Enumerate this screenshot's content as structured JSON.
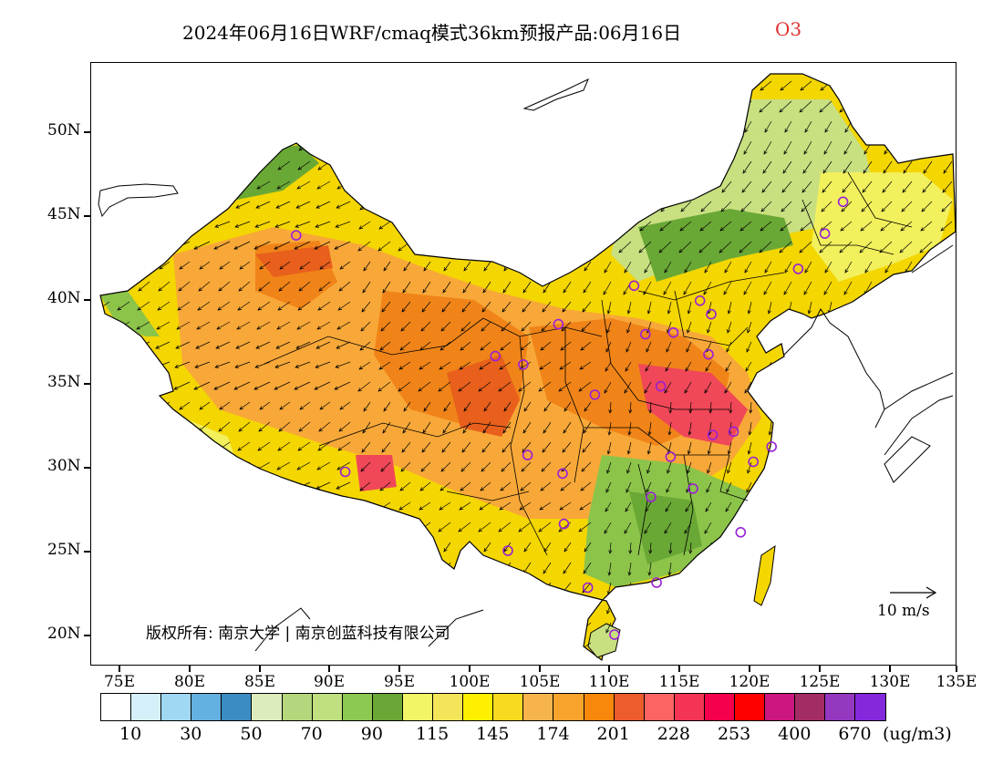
{
  "title": {
    "main": "2024年06月16日WRF/cmaq模式36km预报产品:06月16日",
    "species": "O3",
    "species_color": "#e03030"
  },
  "map": {
    "lon_ticks": [
      "75E",
      "80E",
      "85E",
      "90E",
      "95E",
      "100E",
      "105E",
      "110E",
      "115E",
      "120E",
      "125E",
      "130E",
      "135E"
    ],
    "lat_ticks": [
      "50N",
      "45N",
      "40N",
      "35N",
      "30N",
      "25N",
      "20N"
    ],
    "copyright": "版权所有: 南京大学 | 南京创蓝科技有限公司",
    "vector_key_label": "10 m/s",
    "concentration_colors": [
      "#f4d600",
      "#f8a838",
      "#f08418",
      "#e8601c",
      "#f04858",
      "#c8e080",
      "#8cc44a",
      "#6aa836",
      "#f2f05c"
    ]
  },
  "colorbar": {
    "colors": [
      "#ffffff",
      "#d6f0fa",
      "#a0d8f4",
      "#64b0e0",
      "#3c8cc4",
      "#dcecbc",
      "#b4d67c",
      "#c0e080",
      "#8cc852",
      "#6aa636",
      "#f2f566",
      "#f4e45a",
      "#fff000",
      "#f8da20",
      "#f8b44c",
      "#f8a42c",
      "#f8880c",
      "#ec5c2c",
      "#fc6464",
      "#f43454",
      "#f4004c",
      "#ff0000",
      "#cc1680",
      "#a42c64",
      "#9438c0",
      "#8428dc"
    ],
    "labels": [
      "10",
      "30",
      "50",
      "70",
      "90",
      "115",
      "145",
      "174",
      "201",
      "228",
      "253",
      "400",
      "670"
    ],
    "unit": "(ug/m3)"
  },
  "stations": [
    {
      "lon": 87.6,
      "lat": 43.8
    },
    {
      "lon": 91.1,
      "lat": 29.7
    },
    {
      "lon": 101.8,
      "lat": 36.6
    },
    {
      "lon": 103.8,
      "lat": 36.1
    },
    {
      "lon": 106.3,
      "lat": 38.5
    },
    {
      "lon": 104.1,
      "lat": 30.7
    },
    {
      "lon": 106.6,
      "lat": 29.6
    },
    {
      "lon": 102.7,
      "lat": 25.0
    },
    {
      "lon": 106.7,
      "lat": 26.6
    },
    {
      "lon": 108.4,
      "lat": 22.8
    },
    {
      "lon": 110.3,
      "lat": 20.0
    },
    {
      "lon": 113.3,
      "lat": 23.1
    },
    {
      "lon": 112.9,
      "lat": 28.2
    },
    {
      "lon": 114.3,
      "lat": 30.6
    },
    {
      "lon": 115.9,
      "lat": 28.7
    },
    {
      "lon": 119.3,
      "lat": 26.1
    },
    {
      "lon": 120.2,
      "lat": 30.3
    },
    {
      "lon": 121.5,
      "lat": 31.2
    },
    {
      "lon": 118.8,
      "lat": 32.1
    },
    {
      "lon": 117.3,
      "lat": 31.9
    },
    {
      "lon": 113.6,
      "lat": 34.8
    },
    {
      "lon": 108.9,
      "lat": 34.3
    },
    {
      "lon": 117.0,
      "lat": 36.7
    },
    {
      "lon": 114.5,
      "lat": 38.0
    },
    {
      "lon": 112.5,
      "lat": 37.9
    },
    {
      "lon": 116.4,
      "lat": 39.9
    },
    {
      "lon": 117.2,
      "lat": 39.1
    },
    {
      "lon": 111.7,
      "lat": 40.8
    },
    {
      "lon": 123.4,
      "lat": 41.8
    },
    {
      "lon": 125.3,
      "lat": 43.9
    },
    {
      "lon": 126.6,
      "lat": 45.8
    }
  ]
}
